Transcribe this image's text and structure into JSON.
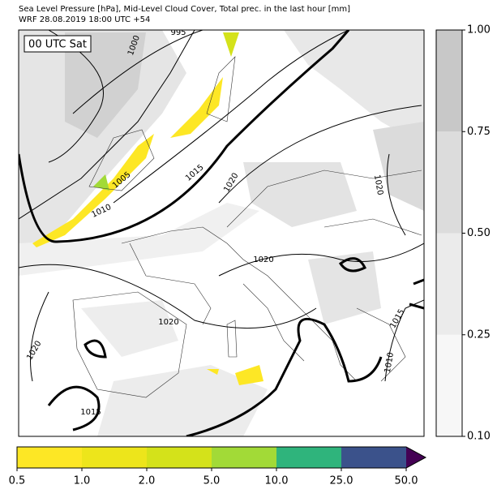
{
  "header": {
    "title_lines": [
      "Sea Level Pressure [hPa], Mid-Level Cloud Cover, Total prec. in the last hour [mm]",
      "WRF 28.08.2019 18:00 UTC +54"
    ]
  },
  "map": {
    "time_label": "00 UTC Sat",
    "isobar_labels": [
      "995",
      "1000",
      "1005",
      "1010",
      "1015",
      "1020",
      "1020",
      "1020",
      "1020",
      "1020",
      "1015",
      "1010",
      "1015"
    ]
  },
  "cloud_colorbar": {
    "ticks": [
      "0.10",
      "0.25",
      "0.50",
      "0.75",
      "1.00"
    ],
    "colors": [
      "#f7f7f7",
      "#ebebeb",
      "#dcdcdc",
      "#c8c8c8"
    ]
  },
  "precip_colorbar": {
    "ticks": [
      "0.5",
      "1.0",
      "2.0",
      "5.0",
      "10.0",
      "25.0",
      "50.0"
    ],
    "colors": [
      "#fde725",
      "#ede51b",
      "#d4e21a",
      "#a2da37",
      "#2fb47c",
      "#3b528b"
    ],
    "over_color": "#440154"
  }
}
